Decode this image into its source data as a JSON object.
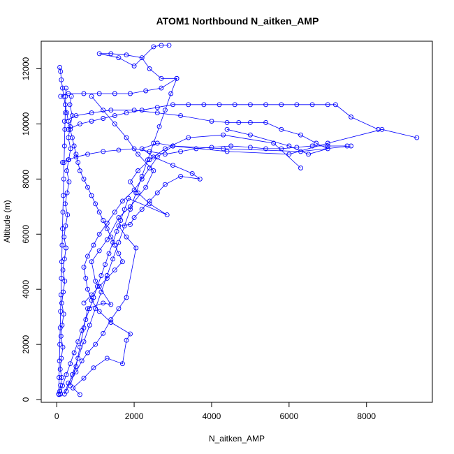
{
  "chart_data": {
    "type": "scatter",
    "title": "ATOM1 Northbound N_aitken_AMP",
    "xlabel": "N_aitken_AMP",
    "ylabel": "Altitude (m)",
    "xlim": [
      -400,
      9700
    ],
    "ylim": [
      -100,
      13000
    ],
    "xticks": [
      0,
      2000,
      4000,
      6000,
      8000
    ],
    "yticks": [
      0,
      2000,
      4000,
      6000,
      8000,
      10000,
      12000
    ],
    "grid": false,
    "legend": "none",
    "color": "#0000ff",
    "marker": "open-circle",
    "connected": true,
    "series": [
      {
        "points": [
          [
            60,
            180
          ],
          [
            80,
            300
          ],
          [
            100,
            520
          ],
          [
            130,
            800
          ],
          [
            90,
            1100
          ],
          [
            120,
            1500
          ],
          [
            160,
            1900
          ],
          [
            110,
            2300
          ],
          [
            140,
            2700
          ],
          [
            180,
            3100
          ],
          [
            130,
            3500
          ],
          [
            170,
            3900
          ],
          [
            210,
            4300
          ],
          [
            160,
            4700
          ],
          [
            200,
            5100
          ],
          [
            240,
            5500
          ],
          [
            190,
            5900
          ],
          [
            230,
            6300
          ],
          [
            280,
            6700
          ],
          [
            220,
            7100
          ],
          [
            270,
            7500
          ],
          [
            320,
            7900
          ],
          [
            260,
            8300
          ],
          [
            310,
            8700
          ],
          [
            360,
            9100
          ],
          [
            300,
            9500
          ],
          [
            350,
            9900
          ],
          [
            400,
            10300
          ],
          [
            340,
            10700
          ],
          [
            380,
            11000
          ]
        ]
      },
      {
        "points": [
          [
            600,
            180
          ],
          [
            420,
            420
          ],
          [
            700,
            780
          ],
          [
            950,
            1150
          ],
          [
            1300,
            1500
          ],
          [
            1700,
            1300
          ],
          [
            1800,
            2150
          ],
          [
            1900,
            2380
          ],
          [
            1400,
            2800
          ],
          [
            1100,
            3200
          ],
          [
            900,
            3600
          ],
          [
            800,
            4000
          ],
          [
            750,
            4400
          ],
          [
            700,
            4800
          ],
          [
            800,
            5200
          ],
          [
            950,
            5600
          ],
          [
            1100,
            6000
          ],
          [
            1300,
            6400
          ],
          [
            1500,
            6800
          ],
          [
            1700,
            7200
          ],
          [
            2000,
            7600
          ],
          [
            2200,
            8000
          ],
          [
            2400,
            8400
          ],
          [
            2600,
            8800
          ],
          [
            3000,
            9200
          ],
          [
            4400,
            9000
          ],
          [
            6000,
            8900
          ],
          [
            7000,
            9300
          ],
          [
            8400,
            9800
          ],
          [
            9300,
            9500
          ]
        ]
      },
      {
        "points": [
          [
            200,
            200
          ],
          [
            300,
            600
          ],
          [
            500,
            1000
          ],
          [
            650,
            1400
          ],
          [
            800,
            1700
          ],
          [
            1000,
            2000
          ],
          [
            1200,
            2400
          ],
          [
            1400,
            2900
          ],
          [
            1600,
            3300
          ],
          [
            1800,
            3700
          ],
          [
            2050,
            5500
          ],
          [
            1800,
            5900
          ],
          [
            1600,
            6300
          ],
          [
            1900,
            6350
          ],
          [
            2000,
            6600
          ],
          [
            2200,
            6900
          ],
          [
            2400,
            7200
          ],
          [
            2600,
            7500
          ],
          [
            2800,
            7800
          ],
          [
            3200,
            8100
          ],
          [
            3700,
            8000
          ],
          [
            3500,
            8200
          ],
          [
            3000,
            8500
          ],
          [
            2500,
            8800
          ],
          [
            2200,
            9100
          ],
          [
            2600,
            9300
          ],
          [
            3000,
            9200
          ],
          [
            4300,
            9100
          ],
          [
            6300,
            9000
          ],
          [
            7600,
            9200
          ]
        ]
      },
      {
        "points": [
          [
            100,
            200
          ],
          [
            150,
            500
          ],
          [
            250,
            900
          ],
          [
            350,
            1300
          ],
          [
            450,
            1700
          ],
          [
            550,
            2100
          ],
          [
            650,
            2500
          ],
          [
            750,
            2900
          ],
          [
            850,
            3300
          ],
          [
            950,
            3700
          ],
          [
            1050,
            4100
          ],
          [
            1150,
            4500
          ],
          [
            1250,
            4900
          ],
          [
            1350,
            5300
          ],
          [
            1450,
            5700
          ],
          [
            1550,
            6100
          ],
          [
            1650,
            6500
          ],
          [
            1750,
            6900
          ],
          [
            1850,
            7300
          ],
          [
            2850,
            6700
          ],
          [
            2400,
            7100
          ],
          [
            2100,
            7500
          ],
          [
            1900,
            7900
          ],
          [
            2100,
            8300
          ],
          [
            2400,
            8700
          ],
          [
            2800,
            9100
          ],
          [
            3400,
            9500
          ],
          [
            4300,
            9600
          ],
          [
            5600,
            9300
          ],
          [
            6300,
            8400
          ]
        ]
      },
      {
        "points": [
          [
            300,
            9800
          ],
          [
            600,
            10000
          ],
          [
            900,
            10100
          ],
          [
            1200,
            10200
          ],
          [
            1500,
            10300
          ],
          [
            1800,
            10400
          ],
          [
            2200,
            10500
          ],
          [
            2600,
            10600
          ],
          [
            3000,
            10700
          ],
          [
            3400,
            10700
          ],
          [
            3800,
            10700
          ],
          [
            4200,
            10700
          ],
          [
            4600,
            10700
          ],
          [
            5000,
            10700
          ],
          [
            5400,
            10700
          ],
          [
            5800,
            10700
          ],
          [
            6200,
            10700
          ],
          [
            6600,
            10700
          ],
          [
            7000,
            10700
          ],
          [
            7200,
            10700
          ],
          [
            7600,
            10250
          ],
          [
            8300,
            9800
          ]
        ]
      },
      {
        "points": [
          [
            200,
            10100
          ],
          [
            500,
            10300
          ],
          [
            900,
            10400
          ],
          [
            1400,
            10500
          ],
          [
            2000,
            10500
          ],
          [
            2600,
            10400
          ],
          [
            3200,
            10300
          ],
          [
            4000,
            10100
          ],
          [
            4400,
            10050
          ],
          [
            4700,
            10050
          ],
          [
            5000,
            10050
          ],
          [
            5400,
            10050
          ],
          [
            5800,
            9800
          ],
          [
            6300,
            9600
          ],
          [
            6700,
            9300
          ],
          [
            7000,
            9100
          ],
          [
            6500,
            8900
          ],
          [
            6000,
            9200
          ],
          [
            5000,
            9600
          ],
          [
            4400,
            9800
          ]
        ]
      },
      {
        "points": [
          [
            100,
            11000
          ],
          [
            300,
            11100
          ],
          [
            700,
            11100
          ],
          [
            1100,
            11100
          ],
          [
            1500,
            11100
          ],
          [
            1900,
            11100
          ],
          [
            2300,
            11200
          ],
          [
            2700,
            11300
          ],
          [
            3100,
            11650
          ],
          [
            2700,
            11650
          ],
          [
            2400,
            12000
          ],
          [
            2200,
            12400
          ],
          [
            1800,
            12500
          ],
          [
            1400,
            12550
          ],
          [
            1100,
            12550
          ],
          [
            1600,
            12400
          ],
          [
            2000,
            12100
          ],
          [
            2500,
            12800
          ],
          [
            2700,
            12850
          ],
          [
            2900,
            12850
          ]
        ]
      },
      {
        "points": [
          [
            80,
            12050
          ],
          [
            100,
            11900
          ],
          [
            120,
            11600
          ],
          [
            150,
            11300
          ],
          [
            180,
            11000
          ],
          [
            220,
            10700
          ],
          [
            260,
            10400
          ],
          [
            300,
            10100
          ],
          [
            350,
            9800
          ],
          [
            400,
            9500
          ],
          [
            450,
            9200
          ],
          [
            500,
            8900
          ],
          [
            550,
            8600
          ],
          [
            600,
            8300
          ],
          [
            700,
            8000
          ],
          [
            800,
            7700
          ],
          [
            900,
            7400
          ],
          [
            1000,
            7100
          ],
          [
            1100,
            6800
          ],
          [
            1200,
            6500
          ],
          [
            1300,
            6200
          ],
          [
            1400,
            5900
          ],
          [
            1500,
            5600
          ],
          [
            1600,
            5300
          ],
          [
            1700,
            5000
          ],
          [
            1500,
            4700
          ],
          [
            1300,
            4400
          ],
          [
            1100,
            4100
          ],
          [
            900,
            3800
          ],
          [
            700,
            3500
          ]
        ]
      },
      {
        "points": [
          [
            50,
            200
          ],
          [
            60,
            800
          ],
          [
            70,
            1400
          ],
          [
            80,
            2000
          ],
          [
            90,
            2600
          ],
          [
            100,
            3200
          ],
          [
            110,
            3800
          ],
          [
            120,
            4400
          ],
          [
            130,
            5000
          ],
          [
            140,
            5600
          ],
          [
            150,
            6200
          ],
          [
            160,
            6800
          ],
          [
            170,
            7400
          ],
          [
            180,
            8000
          ],
          [
            190,
            8600
          ],
          [
            200,
            9200
          ],
          [
            210,
            9800
          ],
          [
            220,
            10400
          ],
          [
            230,
            11000
          ],
          [
            240,
            11300
          ]
        ]
      },
      {
        "points": [
          [
            250,
            300
          ],
          [
            400,
            900
          ],
          [
            550,
            1500
          ],
          [
            700,
            2100
          ],
          [
            850,
            2700
          ],
          [
            1000,
            3300
          ],
          [
            1150,
            3900
          ],
          [
            1300,
            4500
          ],
          [
            1450,
            5100
          ],
          [
            1600,
            5700
          ],
          [
            1750,
            6300
          ],
          [
            1900,
            6900
          ],
          [
            2050,
            7500
          ],
          [
            2200,
            8100
          ],
          [
            2350,
            8700
          ],
          [
            2500,
            9300
          ],
          [
            2650,
            9900
          ],
          [
            2800,
            10500
          ],
          [
            2950,
            11100
          ],
          [
            3100,
            11650
          ]
        ]
      },
      {
        "points": [
          [
            150,
            8600
          ],
          [
            300,
            8700
          ],
          [
            500,
            8800
          ],
          [
            800,
            8900
          ],
          [
            1200,
            9000
          ],
          [
            1600,
            9050
          ],
          [
            2000,
            9100
          ],
          [
            2400,
            9000
          ],
          [
            2800,
            8900
          ],
          [
            3200,
            9000
          ],
          [
            3600,
            9100
          ],
          [
            4000,
            9150
          ],
          [
            4500,
            9200
          ],
          [
            5000,
            9150
          ],
          [
            5400,
            9100
          ],
          [
            5800,
            9100
          ],
          [
            6200,
            9150
          ],
          [
            6600,
            9200
          ],
          [
            7000,
            9200
          ],
          [
            7500,
            9200
          ]
        ]
      },
      {
        "points": [
          [
            350,
            500
          ],
          [
            500,
            1200
          ],
          [
            600,
            1900
          ],
          [
            700,
            2600
          ],
          [
            800,
            3300
          ],
          [
            1200,
            3500
          ],
          [
            1400,
            3450
          ],
          [
            1000,
            4300
          ],
          [
            900,
            5000
          ],
          [
            1100,
            5400
          ],
          [
            1300,
            5800
          ],
          [
            1600,
            6600
          ],
          [
            1900,
            7000
          ],
          [
            2300,
            7700
          ],
          [
            2500,
            8300
          ],
          [
            2100,
            8900
          ],
          [
            1800,
            9500
          ],
          [
            1500,
            10000
          ],
          [
            1200,
            10500
          ],
          [
            900,
            11000
          ]
        ]
      }
    ]
  }
}
